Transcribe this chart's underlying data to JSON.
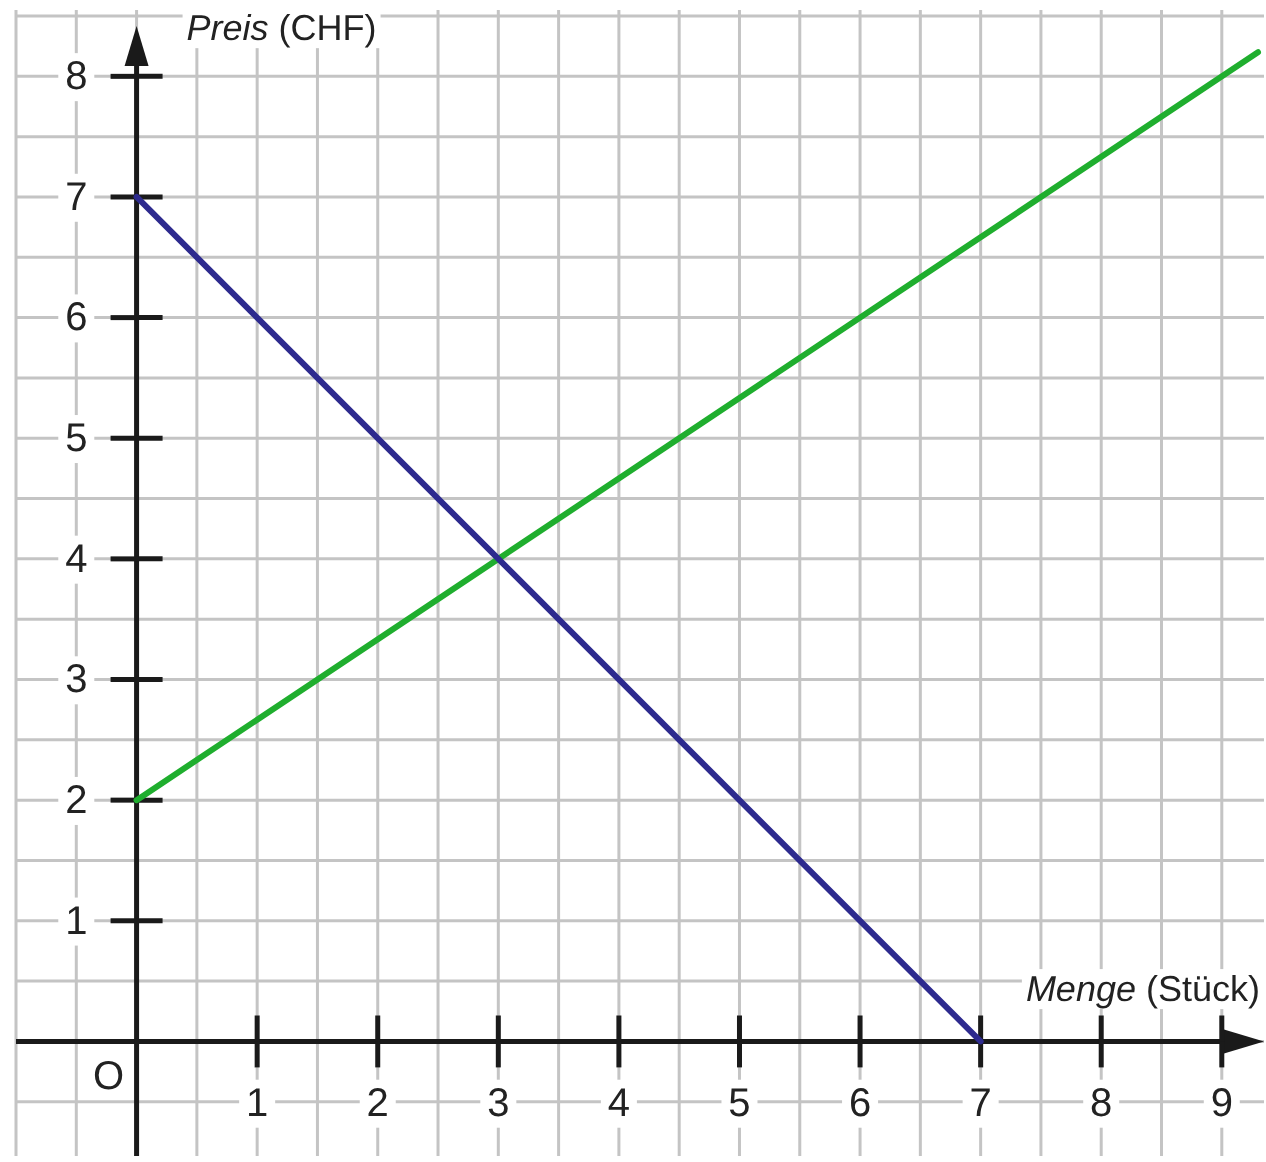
{
  "chart_data": {
    "type": "line",
    "xlabel": "Menge (Stück)",
    "ylabel": "Preis (CHF)",
    "xlim": [
      -1,
      9.35
    ],
    "ylim": [
      -0.95,
      8.55
    ],
    "xticks": [
      1,
      2,
      3,
      4,
      5,
      6,
      7,
      8,
      9
    ],
    "yticks": [
      1,
      2,
      3,
      4,
      5,
      6,
      7,
      8
    ],
    "grid": true,
    "annotations": [
      "O"
    ],
    "series": [
      {
        "color": "#1fae2e",
        "x": [
          0,
          9.3
        ],
        "values": [
          2,
          8.2
        ]
      },
      {
        "color": "#2d2a8e",
        "x": [
          0,
          7
        ],
        "values": [
          7,
          0
        ]
      }
    ]
  }
}
